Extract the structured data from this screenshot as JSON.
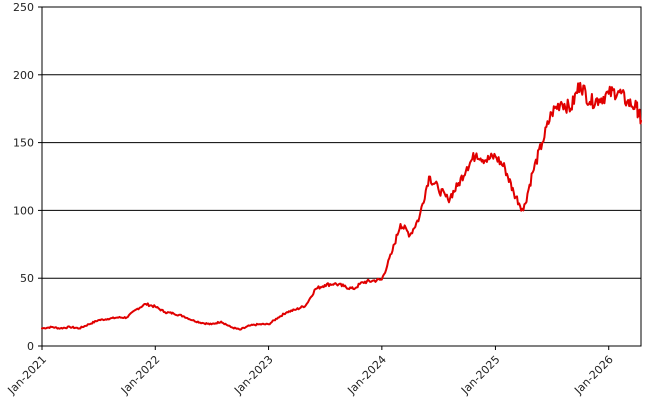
{
  "chart_data": {
    "type": "line",
    "title": "",
    "xlabel": "",
    "ylabel": "",
    "ylim": [
      0,
      250
    ],
    "xlim": [
      "2021-01-01",
      "2026-04-15"
    ],
    "yticks": [
      "0",
      "50",
      "100",
      "150",
      "200",
      "250"
    ],
    "xticks": [
      {
        "date": "2021-01-01",
        "label": "Jan-2021"
      },
      {
        "date": "2022-01-01",
        "label": "Jan-2022"
      },
      {
        "date": "2023-01-01",
        "label": "Jan-2023"
      },
      {
        "date": "2024-01-01",
        "label": "Jan-2024"
      },
      {
        "date": "2025-01-01",
        "label": "Jan-2025"
      },
      {
        "date": "2026-01-01",
        "label": "Jan-2026"
      }
    ],
    "grid": "horizontal",
    "legend": "none",
    "series": [
      {
        "color": "#e00000",
        "points": [
          [
            "2021-01-01",
            13
          ],
          [
            "2021-02-01",
            14
          ],
          [
            "2021-03-01",
            13
          ],
          [
            "2021-04-01",
            14
          ],
          [
            "2021-05-01",
            13
          ],
          [
            "2021-06-01",
            16
          ],
          [
            "2021-07-01",
            19
          ],
          [
            "2021-08-01",
            20
          ],
          [
            "2021-09-01",
            21
          ],
          [
            "2021-10-01",
            21
          ],
          [
            "2021-11-01",
            27
          ],
          [
            "2021-12-01",
            31
          ],
          [
            "2022-01-01",
            29
          ],
          [
            "2022-02-01",
            25
          ],
          [
            "2022-03-01",
            24
          ],
          [
            "2022-04-01",
            22
          ],
          [
            "2022-05-01",
            19
          ],
          [
            "2022-06-01",
            17
          ],
          [
            "2022-07-01",
            16
          ],
          [
            "2022-08-01",
            18
          ],
          [
            "2022-09-01",
            14
          ],
          [
            "2022-10-01",
            12
          ],
          [
            "2022-11-01",
            15
          ],
          [
            "2022-12-01",
            16
          ],
          [
            "2023-01-01",
            16
          ],
          [
            "2023-02-01",
            21
          ],
          [
            "2023-03-01",
            25
          ],
          [
            "2023-04-01",
            27
          ],
          [
            "2023-05-01",
            30
          ],
          [
            "2023-06-01",
            42
          ],
          [
            "2023-07-01",
            45
          ],
          [
            "2023-08-01",
            46
          ],
          [
            "2023-09-01",
            44
          ],
          [
            "2023-10-01",
            42
          ],
          [
            "2023-11-01",
            47
          ],
          [
            "2023-12-01",
            48
          ],
          [
            "2024-01-01",
            49
          ],
          [
            "2024-02-01",
            68
          ],
          [
            "2024-03-01",
            90
          ],
          [
            "2024-04-01",
            82
          ],
          [
            "2024-05-01",
            95
          ],
          [
            "2024-06-01",
            125
          ],
          [
            "2024-07-01",
            116
          ],
          [
            "2024-08-01",
            108
          ],
          [
            "2024-09-01",
            118
          ],
          [
            "2024-10-01",
            132
          ],
          [
            "2024-11-01",
            142
          ],
          [
            "2024-12-01",
            137
          ],
          [
            "2025-01-01",
            140
          ],
          [
            "2025-02-01",
            131
          ],
          [
            "2025-03-01",
            113
          ],
          [
            "2025-04-01",
            100
          ],
          [
            "2025-05-01",
            128
          ],
          [
            "2025-06-01",
            150
          ],
          [
            "2025-07-01",
            172
          ],
          [
            "2025-08-01",
            180
          ],
          [
            "2025-09-01",
            175
          ],
          [
            "2025-10-01",
            194
          ],
          [
            "2025-11-01",
            180
          ],
          [
            "2025-12-01",
            182
          ],
          [
            "2026-01-01",
            186
          ],
          [
            "2026-02-01",
            188
          ],
          [
            "2026-03-01",
            180
          ],
          [
            "2026-04-01",
            176
          ],
          [
            "2026-04-15",
            166
          ]
        ]
      }
    ]
  }
}
